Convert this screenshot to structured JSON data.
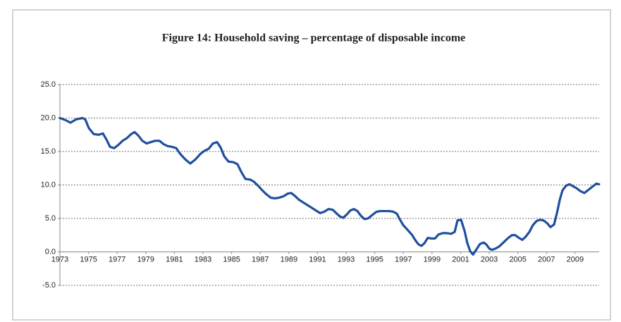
{
  "chart_data": {
    "type": "line",
    "title": "Figure 14: Household saving – percentage of disposable income",
    "x": [
      1973.0,
      1973.39,
      1973.74,
      1974.13,
      1974.58,
      1974.77,
      1975.02,
      1975.36,
      1975.71,
      1976.0,
      1976.25,
      1976.5,
      1976.79,
      1977.09,
      1977.38,
      1977.68,
      1977.98,
      1978.22,
      1978.47,
      1978.76,
      1979.06,
      1979.35,
      1979.65,
      1979.95,
      1980.24,
      1980.54,
      1980.83,
      1981.13,
      1981.42,
      1981.77,
      1982.11,
      1982.46,
      1982.8,
      1983.1,
      1983.39,
      1983.69,
      1983.98,
      1984.23,
      1984.48,
      1984.77,
      1985.12,
      1985.41,
      1985.66,
      1985.96,
      1986.3,
      1986.55,
      1986.84,
      1987.14,
      1987.43,
      1987.73,
      1988.02,
      1988.32,
      1988.62,
      1988.91,
      1989.16,
      1989.4,
      1989.7,
      1989.99,
      1990.29,
      1990.59,
      1990.88,
      1991.18,
      1991.47,
      1991.77,
      1992.06,
      1992.31,
      1992.56,
      1992.8,
      1993.05,
      1993.3,
      1993.54,
      1993.79,
      1994.03,
      1994.28,
      1994.53,
      1994.82,
      1995.12,
      1995.41,
      1995.71,
      1996.0,
      1996.3,
      1996.55,
      1996.74,
      1996.99,
      1997.29,
      1997.58,
      1997.88,
      1998.07,
      1998.27,
      1998.47,
      1998.71,
      1998.96,
      1999.21,
      1999.45,
      1999.75,
      2000.04,
      2000.34,
      2000.59,
      2000.78,
      2001.03,
      2001.28,
      2001.47,
      2001.67,
      2001.87,
      2002.11,
      2002.36,
      2002.61,
      2002.8,
      2003.0,
      2003.2,
      2003.44,
      2003.69,
      2003.99,
      2004.28,
      2004.58,
      2004.82,
      2005.07,
      2005.31,
      2005.56,
      2005.81,
      2006.05,
      2006.3,
      2006.55,
      2006.79,
      2007.04,
      2007.28,
      2007.53,
      2007.73,
      2007.93,
      2008.12,
      2008.37,
      2008.61,
      2008.86,
      2009.11,
      2009.35,
      2009.65,
      2009.95,
      2010.24,
      2010.49,
      2010.68
    ],
    "series": [
      {
        "color": "#1f4f9e",
        "values": [
          20.0,
          19.7,
          19.3,
          19.8,
          20.0,
          19.8,
          18.5,
          17.6,
          17.5,
          17.7,
          16.8,
          15.7,
          15.5,
          16.0,
          16.6,
          17.0,
          17.6,
          17.9,
          17.4,
          16.6,
          16.2,
          16.4,
          16.6,
          16.6,
          16.1,
          15.8,
          15.7,
          15.5,
          14.6,
          13.8,
          13.2,
          13.8,
          14.6,
          15.1,
          15.4,
          16.2,
          16.4,
          15.6,
          14.3,
          13.5,
          13.4,
          13.1,
          12.0,
          10.9,
          10.8,
          10.5,
          9.9,
          9.2,
          8.6,
          8.1,
          8.0,
          8.1,
          8.3,
          8.7,
          8.8,
          8.4,
          7.8,
          7.4,
          7.0,
          6.6,
          6.2,
          5.8,
          6.0,
          6.4,
          6.3,
          5.8,
          5.3,
          5.1,
          5.6,
          6.2,
          6.4,
          6.1,
          5.4,
          4.9,
          5.0,
          5.5,
          6.0,
          6.1,
          6.1,
          6.1,
          6.0,
          5.7,
          4.9,
          4.0,
          3.3,
          2.6,
          1.6,
          1.1,
          0.9,
          1.3,
          2.1,
          2.0,
          2.0,
          2.6,
          2.8,
          2.8,
          2.7,
          3.0,
          4.7,
          4.8,
          3.1,
          1.3,
          0.1,
          -0.4,
          0.4,
          1.2,
          1.4,
          1.1,
          0.5,
          0.3,
          0.5,
          0.8,
          1.4,
          2.0,
          2.5,
          2.5,
          2.1,
          1.8,
          2.3,
          3.0,
          4.0,
          4.6,
          4.8,
          4.7,
          4.3,
          3.7,
          4.1,
          5.8,
          7.8,
          9.2,
          9.9,
          10.1,
          9.8,
          9.5,
          9.1,
          8.8,
          9.3,
          9.8,
          10.2,
          10.1
        ]
      }
    ],
    "xlim": [
      1973,
      2010.68
    ],
    "xticks": [
      1973,
      1975,
      1977,
      1979,
      1981,
      1983,
      1985,
      1987,
      1989,
      1991,
      1993,
      1995,
      1997,
      1999,
      2001,
      2003,
      2005,
      2007,
      2009
    ],
    "ylim": [
      -5,
      25
    ],
    "yticks": [
      {
        "value": -5,
        "label": "-5.0"
      },
      {
        "value": 0,
        "label": "0.0"
      },
      {
        "value": 5,
        "label": "5.0"
      },
      {
        "value": 10,
        "label": "10.0"
      },
      {
        "value": 15,
        "label": "15.0"
      },
      {
        "value": 20,
        "label": "20.0"
      },
      {
        "value": 25,
        "label": "25.0"
      }
    ],
    "grid": true
  }
}
